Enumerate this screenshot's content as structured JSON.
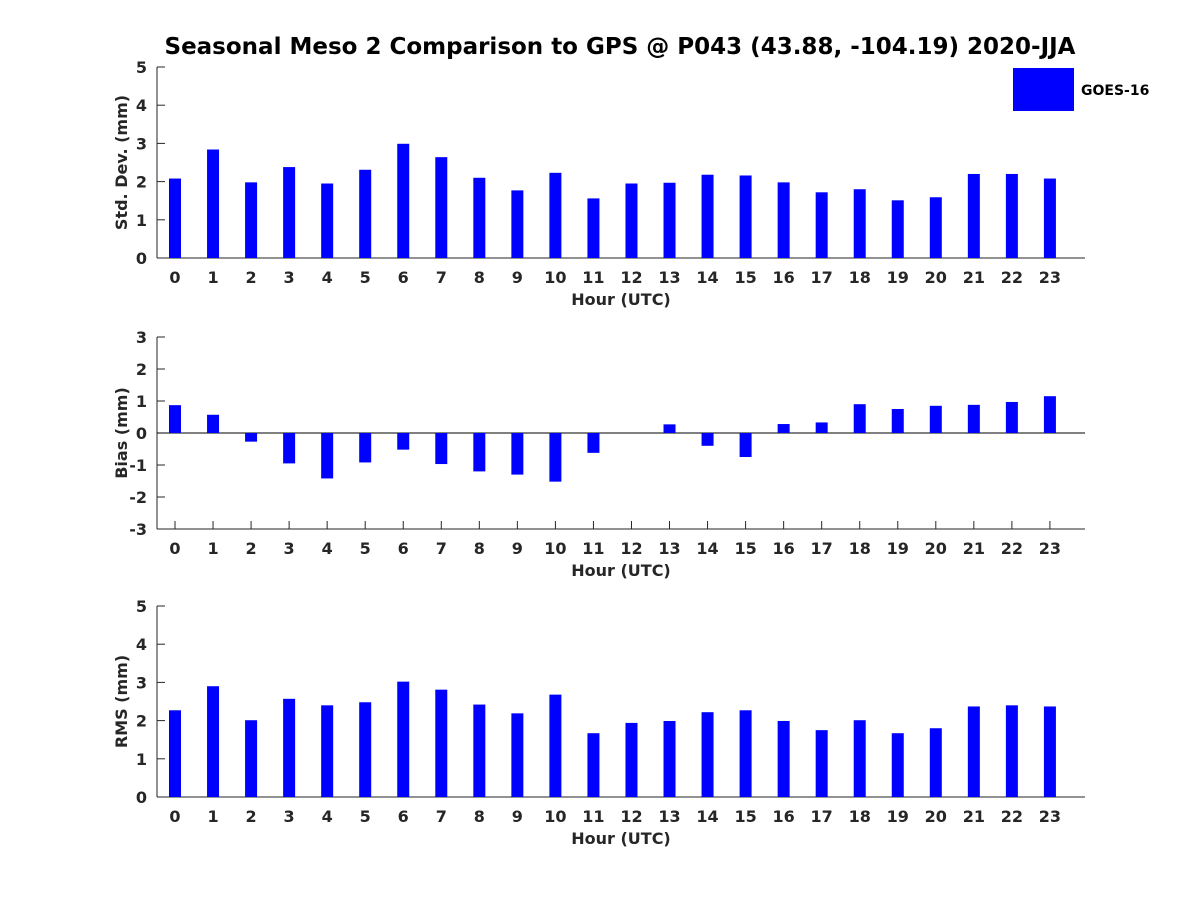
{
  "title": "Seasonal Meso 2 Comparison to GPS @ P043 (43.88, -104.19) 2020-JJA",
  "colors": {
    "bar": "#0000ff",
    "axis": "#262626",
    "background": "#ffffff"
  },
  "legend": {
    "label": "GOES-16",
    "placement": "top-right"
  },
  "chart_data": [
    {
      "type": "bar",
      "xlabel": "Hour (UTC)",
      "ylabel": "Std. Dev. (mm)",
      "ylim": [
        0,
        5
      ],
      "yticks": [
        0,
        1,
        2,
        3,
        4,
        5
      ],
      "categories": [
        "0",
        "1",
        "2",
        "3",
        "4",
        "5",
        "6",
        "7",
        "8",
        "9",
        "10",
        "11",
        "12",
        "13",
        "14",
        "15",
        "16",
        "17",
        "18",
        "19",
        "20",
        "21",
        "22",
        "23"
      ],
      "series": [
        {
          "name": "GOES-16",
          "values": [
            2.08,
            2.84,
            1.98,
            2.38,
            1.95,
            2.31,
            2.99,
            2.64,
            2.1,
            1.77,
            2.23,
            1.56,
            1.95,
            1.97,
            2.18,
            2.16,
            1.98,
            1.72,
            1.8,
            1.51,
            1.59,
            2.2,
            2.2,
            2.08
          ]
        }
      ]
    },
    {
      "type": "bar",
      "xlabel": "Hour (UTC)",
      "ylabel": "Bias (mm)",
      "ylim": [
        -3,
        3
      ],
      "yticks": [
        -3,
        -2,
        -1,
        0,
        1,
        2,
        3
      ],
      "categories": [
        "0",
        "1",
        "2",
        "3",
        "4",
        "5",
        "6",
        "7",
        "8",
        "9",
        "10",
        "11",
        "12",
        "13",
        "14",
        "15",
        "16",
        "17",
        "18",
        "19",
        "20",
        "21",
        "22",
        "23"
      ],
      "series": [
        {
          "name": "GOES-16",
          "values": [
            0.87,
            0.57,
            -0.27,
            -0.95,
            -1.42,
            -0.92,
            -0.52,
            -0.97,
            -1.2,
            -1.3,
            -1.52,
            -0.62,
            0.0,
            0.27,
            -0.4,
            -0.75,
            0.28,
            0.33,
            0.9,
            0.75,
            0.85,
            0.88,
            0.97,
            1.15
          ]
        }
      ]
    },
    {
      "type": "bar",
      "xlabel": "Hour (UTC)",
      "ylabel": "RMS (mm)",
      "ylim": [
        0,
        5
      ],
      "yticks": [
        0,
        1,
        2,
        3,
        4,
        5
      ],
      "categories": [
        "0",
        "1",
        "2",
        "3",
        "4",
        "5",
        "6",
        "7",
        "8",
        "9",
        "10",
        "11",
        "12",
        "13",
        "14",
        "15",
        "16",
        "17",
        "18",
        "19",
        "20",
        "21",
        "22",
        "23"
      ],
      "series": [
        {
          "name": "GOES-16",
          "values": [
            2.27,
            2.9,
            2.01,
            2.57,
            2.4,
            2.48,
            3.02,
            2.81,
            2.42,
            2.19,
            2.68,
            1.67,
            1.94,
            1.99,
            2.22,
            2.27,
            1.99,
            1.75,
            2.01,
            1.67,
            1.8,
            2.37,
            2.4,
            2.37
          ]
        }
      ]
    }
  ]
}
